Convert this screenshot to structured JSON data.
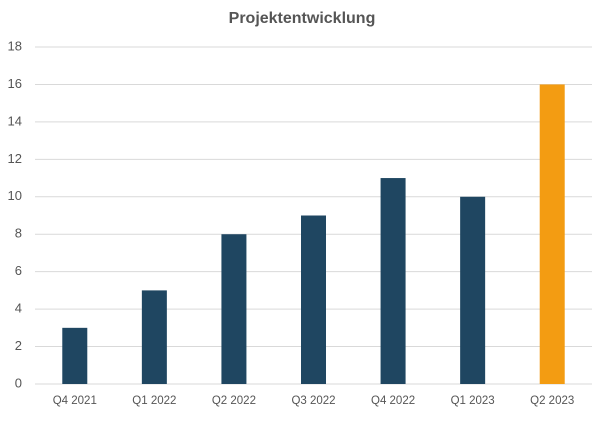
{
  "chart_data": {
    "type": "bar",
    "title": "Projektentwicklung",
    "categories": [
      "Q4 2021",
      "Q1 2022",
      "Q2 2022",
      "Q3 2022",
      "Q4 2022",
      "Q1 2023",
      "Q2 2023"
    ],
    "values": [
      3,
      5,
      8,
      9,
      11,
      10,
      16
    ],
    "colors": [
      "#1f4661",
      "#1f4661",
      "#1f4661",
      "#1f4661",
      "#1f4661",
      "#1f4661",
      "#f39c12"
    ],
    "ylim": [
      0,
      18
    ],
    "yticks": [
      0,
      2,
      4,
      6,
      8,
      10,
      12,
      14,
      16,
      18
    ],
    "grid": true
  }
}
